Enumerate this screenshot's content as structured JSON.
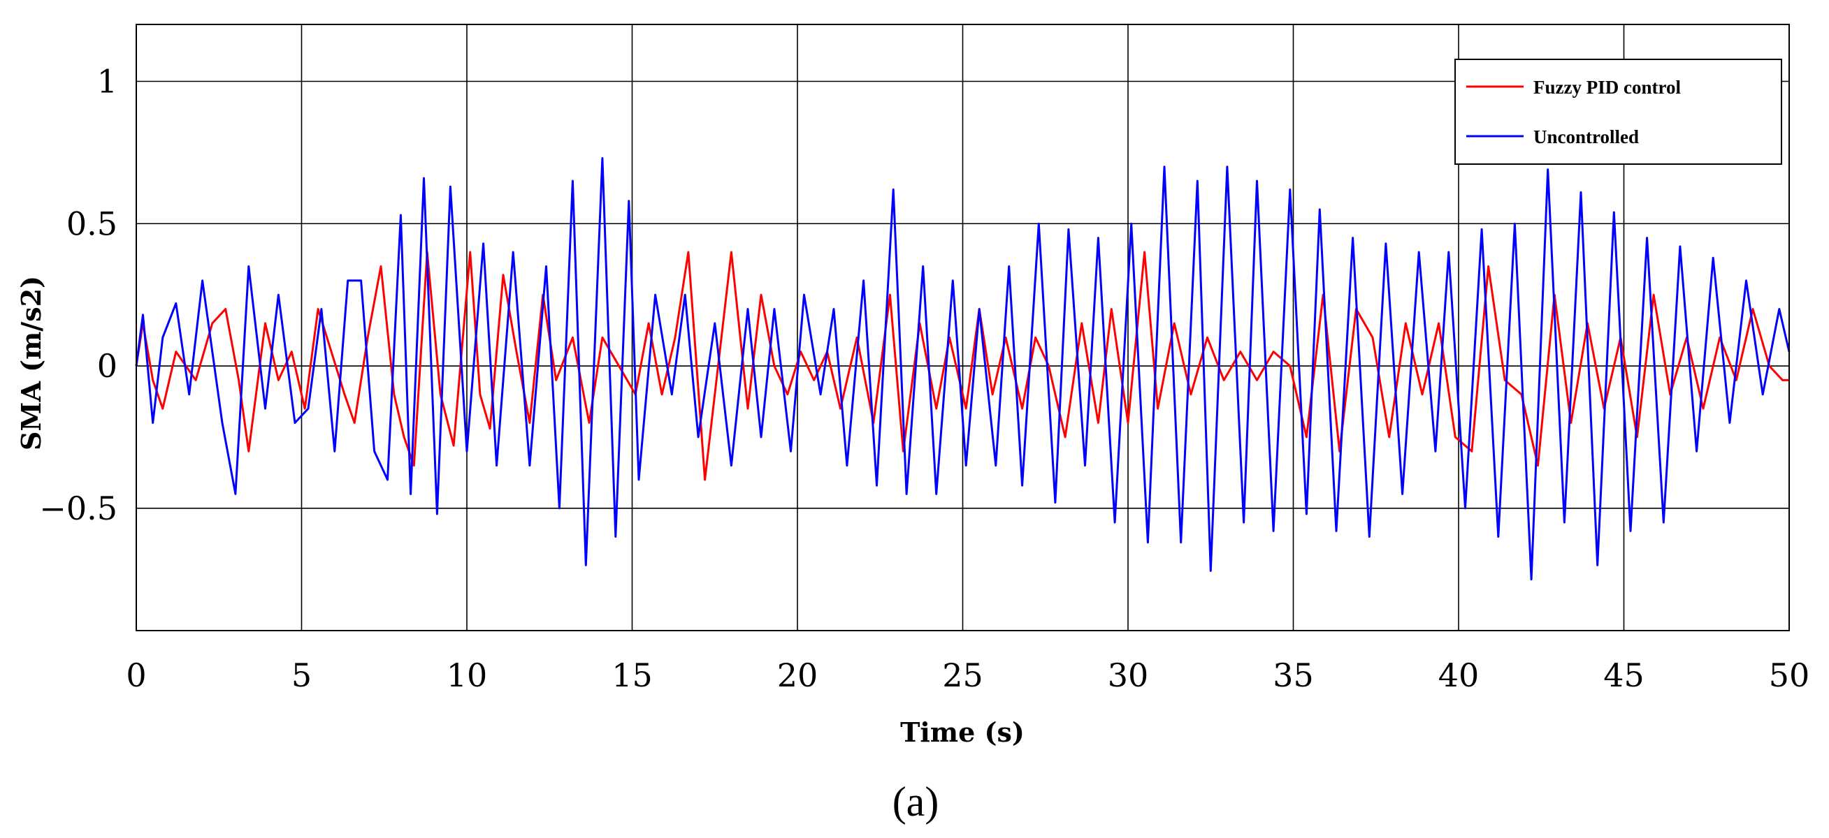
{
  "chart_data": {
    "type": "line",
    "title": "",
    "xlabel": "Time (s)",
    "ylabel": "SMA (m/s2)",
    "xlim": [
      0,
      50
    ],
    "ylim": [
      -0.93,
      1.2
    ],
    "xticks": [
      0,
      5,
      10,
      15,
      20,
      25,
      30,
      35,
      40,
      45,
      50
    ],
    "xtick_labels": [
      "0",
      "5",
      "10",
      "15",
      "20",
      "25",
      "30",
      "35",
      "40",
      "45",
      "50"
    ],
    "yticks": [
      1,
      0.5,
      0,
      -0.5
    ],
    "ytick_labels": [
      "1",
      "0.5",
      "0",
      "−0.5"
    ],
    "grid": true,
    "legend_position": "top-right",
    "caption": "(a)",
    "series": [
      {
        "name": "Fuzzy PID control",
        "color": "#ff0000",
        "x": [
          0,
          0.2,
          0.5,
          0.8,
          1.2,
          1.8,
          2.3,
          2.7,
          3.1,
          3.4,
          3.9,
          4.3,
          4.7,
          5.1,
          5.5,
          5.9,
          6.3,
          6.6,
          7.0,
          7.4,
          7.8,
          8.1,
          8.4,
          8.8,
          9.2,
          9.6,
          10.1,
          10.4,
          10.7,
          11.1,
          11.5,
          11.9,
          12.3,
          12.7,
          13.2,
          13.7,
          14.1,
          14.6,
          15.1,
          15.5,
          15.9,
          16.3,
          16.7,
          17.2,
          17.6,
          18.0,
          18.5,
          18.9,
          19.3,
          19.7,
          20.1,
          20.5,
          20.9,
          21.3,
          21.8,
          22.3,
          22.8,
          23.2,
          23.7,
          24.2,
          24.6,
          25.1,
          25.5,
          25.9,
          26.3,
          26.8,
          27.2,
          27.6,
          28.1,
          28.6,
          29.1,
          29.5,
          30.0,
          30.5,
          30.9,
          31.4,
          31.9,
          32.4,
          32.9,
          33.4,
          33.9,
          34.4,
          34.9,
          35.4,
          35.9,
          36.4,
          36.9,
          37.4,
          37.9,
          38.4,
          38.9,
          39.4,
          39.9,
          40.4,
          40.9,
          41.4,
          41.9,
          42.4,
          42.9,
          43.4,
          43.9,
          44.4,
          44.9,
          45.4,
          45.9,
          46.4,
          46.9,
          47.4,
          47.9,
          48.4,
          48.9,
          49.4,
          49.8,
          50
        ],
        "y": [
          0,
          0.15,
          -0.05,
          -0.15,
          0.05,
          -0.05,
          0.15,
          0.2,
          -0.05,
          -0.3,
          0.15,
          -0.05,
          0.05,
          -0.15,
          0.2,
          0.05,
          -0.1,
          -0.2,
          0.1,
          0.35,
          -0.1,
          -0.25,
          -0.35,
          0.4,
          -0.1,
          -0.28,
          0.4,
          -0.1,
          -0.22,
          0.32,
          0.05,
          -0.2,
          0.25,
          -0.05,
          0.1,
          -0.2,
          0.1,
          0.0,
          -0.1,
          0.15,
          -0.1,
          0.1,
          0.4,
          -0.4,
          0.0,
          0.4,
          -0.15,
          0.25,
          0.0,
          -0.1,
          0.05,
          -0.05,
          0.05,
          -0.15,
          0.1,
          -0.2,
          0.25,
          -0.3,
          0.15,
          -0.15,
          0.1,
          -0.15,
          0.2,
          -0.1,
          0.1,
          -0.15,
          0.1,
          0.0,
          -0.25,
          0.15,
          -0.2,
          0.2,
          -0.2,
          0.4,
          -0.15,
          0.15,
          -0.1,
          0.1,
          -0.05,
          0.05,
          -0.05,
          0.05,
          0.0,
          -0.25,
          0.25,
          -0.3,
          0.2,
          0.1,
          -0.25,
          0.15,
          -0.1,
          0.15,
          -0.25,
          -0.3,
          0.35,
          -0.05,
          -0.1,
          -0.35,
          0.25,
          -0.2,
          0.15,
          -0.15,
          0.1,
          -0.25,
          0.25,
          -0.1,
          0.1,
          -0.15,
          0.1,
          -0.05,
          0.2,
          0.0,
          -0.05,
          -0.05
        ]
      },
      {
        "name": "Uncontrolled",
        "color": "#0000ff",
        "x": [
          0,
          0.2,
          0.5,
          0.8,
          1.2,
          1.6,
          2.0,
          2.6,
          3.0,
          3.4,
          3.9,
          4.3,
          4.8,
          5.2,
          5.6,
          6.0,
          6.4,
          6.8,
          7.2,
          7.6,
          8.0,
          8.3,
          8.7,
          9.1,
          9.5,
          10.0,
          10.5,
          10.9,
          11.4,
          11.9,
          12.4,
          12.8,
          13.2,
          13.6,
          14.1,
          14.5,
          14.9,
          15.2,
          15.7,
          16.2,
          16.6,
          17.0,
          17.5,
          18.0,
          18.5,
          18.9,
          19.3,
          19.8,
          20.2,
          20.7,
          21.1,
          21.5,
          22.0,
          22.4,
          22.9,
          23.3,
          23.8,
          24.2,
          24.7,
          25.1,
          25.5,
          26.0,
          26.4,
          26.8,
          27.3,
          27.8,
          28.2,
          28.7,
          29.1,
          29.6,
          30.1,
          30.6,
          31.1,
          31.6,
          32.1,
          32.5,
          33.0,
          33.5,
          33.9,
          34.4,
          34.9,
          35.4,
          35.8,
          36.3,
          36.8,
          37.3,
          37.8,
          38.3,
          38.8,
          39.3,
          39.7,
          40.2,
          40.7,
          41.2,
          41.7,
          42.2,
          42.7,
          43.2,
          43.7,
          44.2,
          44.7,
          45.2,
          45.7,
          46.2,
          46.7,
          47.2,
          47.7,
          48.2,
          48.7,
          49.2,
          49.7,
          50
        ],
        "y": [
          0,
          0.18,
          -0.2,
          0.1,
          0.22,
          -0.1,
          0.3,
          -0.2,
          -0.45,
          0.35,
          -0.15,
          0.25,
          -0.2,
          -0.15,
          0.2,
          -0.3,
          0.3,
          0.3,
          -0.3,
          -0.4,
          0.53,
          -0.45,
          0.66,
          -0.52,
          0.63,
          -0.3,
          0.43,
          -0.35,
          0.4,
          -0.35,
          0.35,
          -0.5,
          0.65,
          -0.7,
          0.73,
          -0.6,
          0.58,
          -0.4,
          0.25,
          -0.1,
          0.25,
          -0.25,
          0.15,
          -0.35,
          0.2,
          -0.25,
          0.2,
          -0.3,
          0.25,
          -0.1,
          0.2,
          -0.35,
          0.3,
          -0.42,
          0.62,
          -0.45,
          0.35,
          -0.45,
          0.3,
          -0.35,
          0.2,
          -0.35,
          0.35,
          -0.42,
          0.5,
          -0.48,
          0.48,
          -0.35,
          0.45,
          -0.55,
          0.5,
          -0.62,
          0.7,
          -0.62,
          0.65,
          -0.72,
          0.7,
          -0.55,
          0.65,
          -0.58,
          0.62,
          -0.52,
          0.55,
          -0.58,
          0.45,
          -0.6,
          0.43,
          -0.45,
          0.4,
          -0.3,
          0.4,
          -0.5,
          0.48,
          -0.6,
          0.5,
          -0.75,
          0.69,
          -0.55,
          0.61,
          -0.7,
          0.54,
          -0.58,
          0.45,
          -0.55,
          0.42,
          -0.3,
          0.38,
          -0.2,
          0.3,
          -0.1,
          0.2,
          0.05
        ]
      }
    ]
  }
}
